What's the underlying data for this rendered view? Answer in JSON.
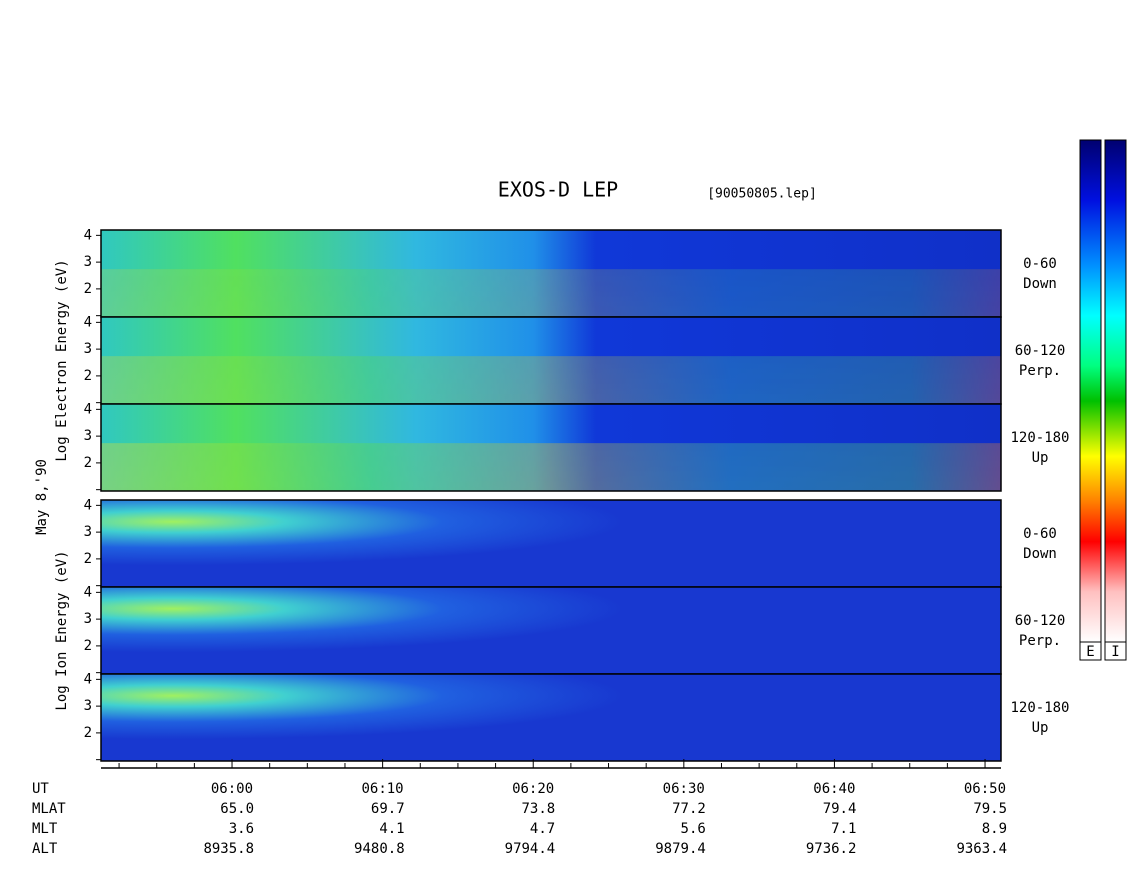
{
  "title": "EXOS-D LEP",
  "file": "[90050805.lep]",
  "date": "May  8,'90",
  "groups": [
    {
      "ylabel": "Log Electron Energy (eV)",
      "panels": [
        {
          "angle": "0-60",
          "dir": "Down"
        },
        {
          "angle": "60-120",
          "dir": "Perp."
        },
        {
          "angle": "120-180",
          "dir": "Up"
        }
      ]
    },
    {
      "ylabel": "Log Ion Energy (eV)",
      "panels": [
        {
          "angle": "0-60",
          "dir": "Down"
        },
        {
          "angle": "60-120",
          "dir": "Perp."
        },
        {
          "angle": "120-180",
          "dir": "Up"
        }
      ]
    }
  ],
  "ylim": [
    0.95,
    4.2
  ],
  "yticks": [
    2,
    3,
    4
  ],
  "yticks_unlabeled": [
    1
  ],
  "xlim": [
    351.3,
    411.06
  ],
  "xticks": [
    {
      "value": 360,
      "label": "06:00"
    },
    {
      "value": 370,
      "label": "06:10"
    },
    {
      "value": 380,
      "label": "06:20"
    },
    {
      "value": 390,
      "label": "06:30"
    },
    {
      "value": 400,
      "label": "06:40"
    },
    {
      "value": 410,
      "label": "06:50"
    }
  ],
  "xminor": [
    352.5,
    355,
    357.5,
    362.5,
    365,
    367.5,
    372.5,
    375,
    377.5,
    382.5,
    385,
    387.5,
    392.5,
    395,
    397.5,
    402.5,
    405,
    407.5
  ],
  "ephemeris": [
    {
      "name": "UT"
    },
    {
      "name": "MLAT",
      "values": [
        "65.0",
        "69.7",
        "73.8",
        "77.2",
        "79.4",
        "79.5"
      ]
    },
    {
      "name": "MLT",
      "values": [
        "3.6",
        "4.1",
        "4.7",
        "5.6",
        "7.1",
        "8.9"
      ]
    },
    {
      "name": "ALT",
      "values": [
        "8935.8",
        "9480.8",
        "9794.4",
        "9879.4",
        "9736.2",
        "9363.4"
      ]
    }
  ],
  "colorbars": [
    "E",
    "I"
  ]
}
